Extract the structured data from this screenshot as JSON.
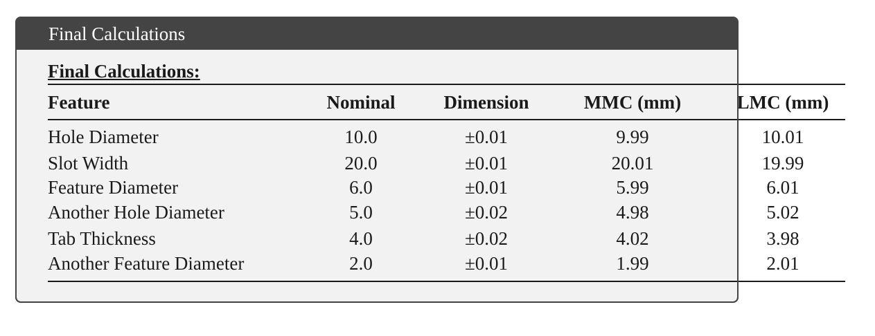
{
  "header": {
    "title": "Final Calculations"
  },
  "table": {
    "caption": "Final Calculations:",
    "columns": [
      "Feature",
      "Nominal",
      "Dimension",
      "MMC (mm)",
      "LMC (mm)"
    ],
    "rows": [
      [
        "Hole Diameter",
        "10.0",
        "±0.01",
        "9.99",
        "10.01"
      ],
      [
        "Slot Width",
        "20.0",
        "±0.01",
        "20.01",
        "19.99"
      ],
      [
        "Feature Diameter",
        "6.0",
        "±0.01",
        "5.99",
        "6.01"
      ],
      [
        "Another Hole Diameter",
        "5.0",
        "±0.02",
        "4.98",
        "5.02"
      ],
      [
        "Tab Thickness",
        "4.0",
        "±0.02",
        "4.02",
        "3.98"
      ],
      [
        "Another Feature Diameter",
        "2.0",
        "±0.01",
        "1.99",
        "2.01"
      ]
    ]
  }
}
